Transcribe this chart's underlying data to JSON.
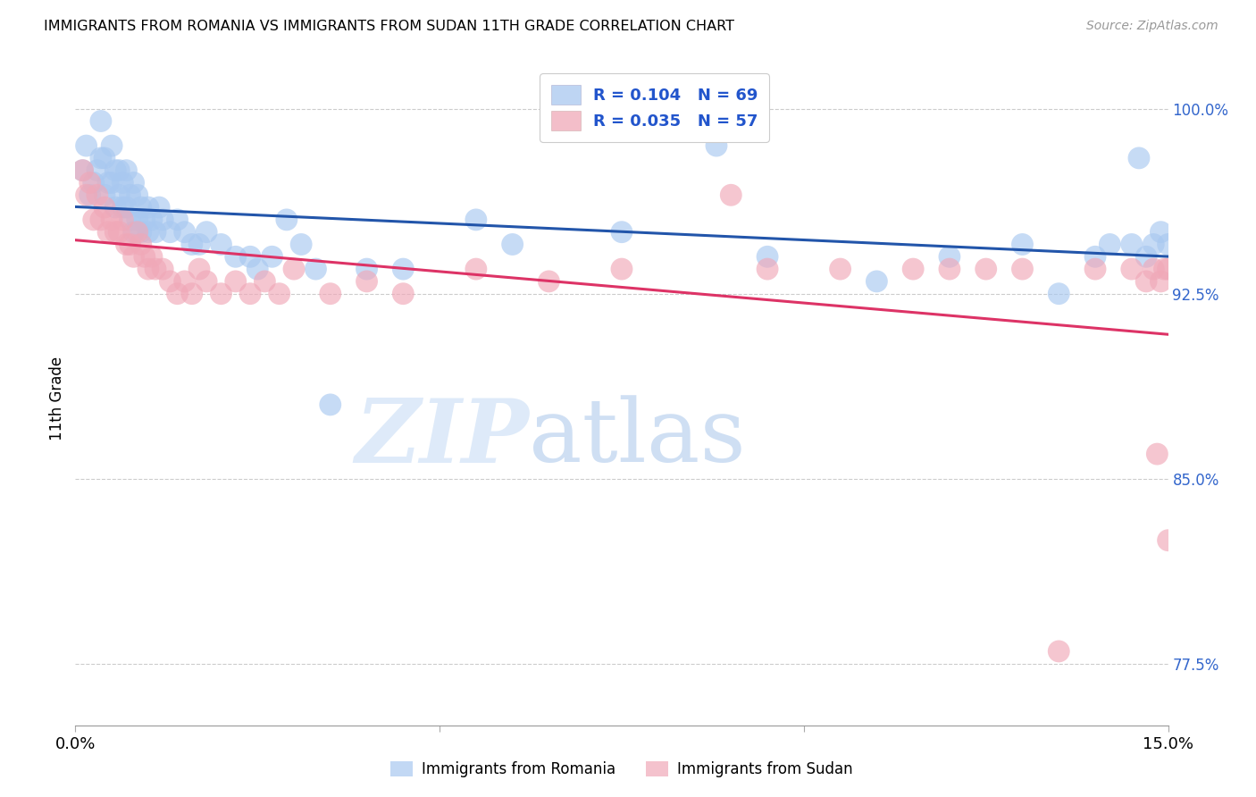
{
  "title": "IMMIGRANTS FROM ROMANIA VS IMMIGRANTS FROM SUDAN 11TH GRADE CORRELATION CHART",
  "source": "Source: ZipAtlas.com",
  "ylabel": "11th Grade",
  "watermark_zip": "ZIP",
  "watermark_atlas": "atlas",
  "xlim": [
    0.0,
    15.0
  ],
  "ylim": [
    75.0,
    101.5
  ],
  "xticks": [
    0.0,
    5.0,
    10.0,
    15.0
  ],
  "xtick_labels": [
    "0.0%",
    "",
    "",
    "15.0%"
  ],
  "ytick_labels_right": [
    "77.5%",
    "85.0%",
    "92.5%",
    "100.0%"
  ],
  "yticks_right": [
    77.5,
    85.0,
    92.5,
    100.0
  ],
  "romania_color": "#a8c8f0",
  "sudan_color": "#f0a8b8",
  "romania_line_color": "#2255aa",
  "sudan_line_color": "#dd3366",
  "legend_text_color": "#2255cc",
  "romania_R": 0.104,
  "romania_N": 69,
  "sudan_R": 0.035,
  "sudan_N": 57,
  "romania_scatter_x": [
    0.1,
    0.15,
    0.2,
    0.25,
    0.3,
    0.35,
    0.35,
    0.4,
    0.4,
    0.45,
    0.5,
    0.5,
    0.55,
    0.55,
    0.6,
    0.6,
    0.65,
    0.65,
    0.7,
    0.7,
    0.75,
    0.75,
    0.8,
    0.8,
    0.85,
    0.85,
    0.9,
    0.9,
    0.95,
    1.0,
    1.0,
    1.05,
    1.1,
    1.15,
    1.2,
    1.3,
    1.4,
    1.5,
    1.6,
    1.7,
    1.8,
    2.0,
    2.2,
    2.4,
    2.5,
    2.7,
    2.9,
    3.1,
    3.3,
    3.5,
    4.0,
    4.5,
    5.5,
    6.0,
    7.5,
    8.8,
    9.5,
    11.0,
    12.0,
    13.0,
    13.5,
    14.0,
    14.2,
    14.5,
    14.6,
    14.7,
    14.8,
    14.9,
    15.0
  ],
  "romania_scatter_y": [
    97.5,
    98.5,
    96.5,
    97.0,
    97.5,
    98.0,
    99.5,
    96.5,
    98.0,
    97.0,
    97.0,
    98.5,
    96.0,
    97.5,
    96.5,
    97.5,
    96.0,
    97.0,
    96.0,
    97.5,
    95.5,
    96.5,
    95.0,
    97.0,
    95.5,
    96.5,
    95.0,
    96.0,
    95.5,
    95.0,
    96.0,
    95.5,
    95.0,
    96.0,
    95.5,
    95.0,
    95.5,
    95.0,
    94.5,
    94.5,
    95.0,
    94.5,
    94.0,
    94.0,
    93.5,
    94.0,
    95.5,
    94.5,
    93.5,
    88.0,
    93.5,
    93.5,
    95.5,
    94.5,
    95.0,
    98.5,
    94.0,
    93.0,
    94.0,
    94.5,
    92.5,
    94.0,
    94.5,
    94.5,
    98.0,
    94.0,
    94.5,
    95.0,
    94.5
  ],
  "sudan_scatter_x": [
    0.1,
    0.15,
    0.2,
    0.25,
    0.3,
    0.35,
    0.4,
    0.45,
    0.5,
    0.55,
    0.6,
    0.65,
    0.7,
    0.75,
    0.8,
    0.85,
    0.9,
    0.95,
    1.0,
    1.05,
    1.1,
    1.2,
    1.3,
    1.4,
    1.5,
    1.6,
    1.7,
    1.8,
    2.0,
    2.2,
    2.4,
    2.6,
    2.8,
    3.0,
    3.5,
    4.0,
    4.5,
    5.5,
    6.5,
    7.5,
    9.0,
    9.5,
    10.5,
    11.5,
    12.0,
    12.5,
    13.0,
    13.5,
    14.0,
    14.5,
    14.7,
    14.8,
    14.85,
    14.9,
    14.95,
    15.0,
    15.0
  ],
  "sudan_scatter_y": [
    97.5,
    96.5,
    97.0,
    95.5,
    96.5,
    95.5,
    96.0,
    95.0,
    95.5,
    95.0,
    95.0,
    95.5,
    94.5,
    94.5,
    94.0,
    95.0,
    94.5,
    94.0,
    93.5,
    94.0,
    93.5,
    93.5,
    93.0,
    92.5,
    93.0,
    92.5,
    93.5,
    93.0,
    92.5,
    93.0,
    92.5,
    93.0,
    92.5,
    93.5,
    92.5,
    93.0,
    92.5,
    93.5,
    93.0,
    93.5,
    96.5,
    93.5,
    93.5,
    93.5,
    93.5,
    93.5,
    93.5,
    78.0,
    93.5,
    93.5,
    93.0,
    93.5,
    86.0,
    93.0,
    93.5,
    82.5,
    93.5
  ]
}
